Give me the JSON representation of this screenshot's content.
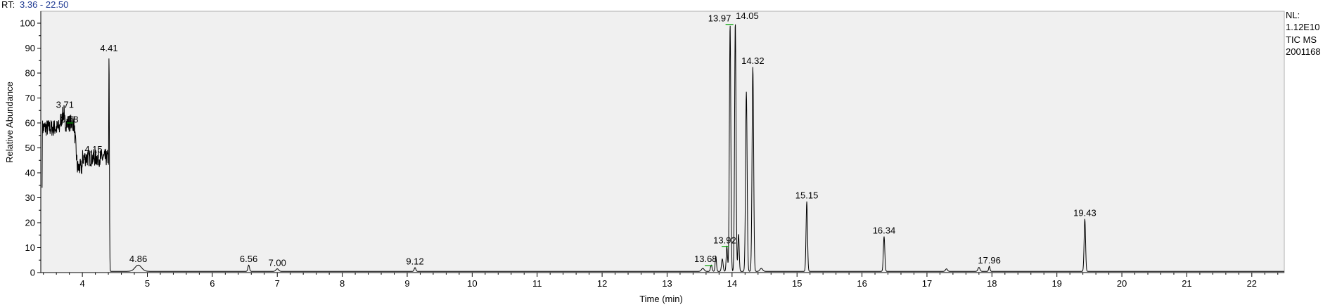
{
  "header": {
    "rt_label": "RT:",
    "rt_range": "3.36 - 22.50"
  },
  "info": {
    "nl_label": "NL:",
    "nl_value": "1.12E10",
    "scan_type": "TIC MS",
    "file_id": "2001168"
  },
  "colors": {
    "plot_bg": "#f0f0f0",
    "trace": "#000000",
    "marker": "#00a000",
    "rt_text": "#1f3a93"
  },
  "chart_data": {
    "type": "line",
    "title": "",
    "xlabel": "Time (min)",
    "ylabel": "Relative Abundance",
    "xlim": [
      3.36,
      22.5
    ],
    "ylim": [
      0,
      100
    ],
    "x_ticks": [
      4,
      5,
      6,
      7,
      8,
      9,
      10,
      11,
      12,
      13,
      14,
      15,
      16,
      17,
      18,
      19,
      20,
      21,
      22
    ],
    "y_ticks": [
      0,
      10,
      20,
      30,
      40,
      50,
      60,
      70,
      80,
      90,
      100
    ],
    "grid": false,
    "noise_segment": {
      "start": 3.38,
      "end": 4.41,
      "start_level": 34
    },
    "baseline_level": 0.5,
    "peaks": [
      {
        "rt": 4.41,
        "height": 87,
        "label": "4.41",
        "w": 0.006
      },
      {
        "rt": 4.86,
        "height": 2.5,
        "label": "4.86",
        "w": 0.05
      },
      {
        "rt": 6.56,
        "height": 2.5,
        "label": "6.56",
        "w": 0.012
      },
      {
        "rt": 7.0,
        "height": 1.0,
        "label": "7.00",
        "w": 0.02
      },
      {
        "rt": 9.12,
        "height": 1.5,
        "label": "9.12",
        "w": 0.012
      },
      {
        "rt": 13.55,
        "height": 1.2,
        "w": 0.02
      },
      {
        "rt": 13.68,
        "height": 2.5,
        "label": "13.68",
        "w": 0.012
      },
      {
        "rt": 13.75,
        "height": 6,
        "w": 0.01
      },
      {
        "rt": 13.85,
        "height": 5,
        "w": 0.012
      },
      {
        "rt": 13.92,
        "height": 10,
        "label": "13.92",
        "w": 0.01
      },
      {
        "rt": 13.97,
        "height": 99,
        "label": "13.97",
        "w": 0.011
      },
      {
        "rt": 14.05,
        "height": 100,
        "label": "14.05",
        "w": 0.011
      },
      {
        "rt": 14.1,
        "height": 15,
        "w": 0.01
      },
      {
        "rt": 14.22,
        "height": 72,
        "w": 0.012
      },
      {
        "rt": 14.32,
        "height": 82,
        "label": "14.32",
        "w": 0.012
      },
      {
        "rt": 14.45,
        "height": 1.2,
        "w": 0.02
      },
      {
        "rt": 15.15,
        "height": 28,
        "label": "15.15",
        "w": 0.011
      },
      {
        "rt": 16.34,
        "height": 14,
        "label": "16.34",
        "w": 0.011
      },
      {
        "rt": 17.3,
        "height": 1,
        "w": 0.015
      },
      {
        "rt": 17.8,
        "height": 1.6,
        "w": 0.015
      },
      {
        "rt": 17.96,
        "height": 2,
        "label": "17.96",
        "w": 0.01
      },
      {
        "rt": 19.43,
        "height": 21,
        "label": "19.43",
        "w": 0.011
      }
    ],
    "markers": [
      {
        "x1": 13.9,
        "x2": 14.02,
        "y": 99.5
      },
      {
        "x1": 13.84,
        "x2": 13.95,
        "y": 10.5
      },
      {
        "x1": 13.58,
        "x2": 13.7,
        "y": 2.8
      },
      {
        "x1": 3.76,
        "x2": 3.86,
        "y": 60
      }
    ],
    "annotations": [
      {
        "text": "3.71",
        "x": 3.71,
        "y": 65
      },
      {
        "text": "3.78",
        "x": 3.78,
        "y": 59
      },
      {
        "text": "4.15",
        "x": 4.15,
        "y": 47
      }
    ]
  }
}
